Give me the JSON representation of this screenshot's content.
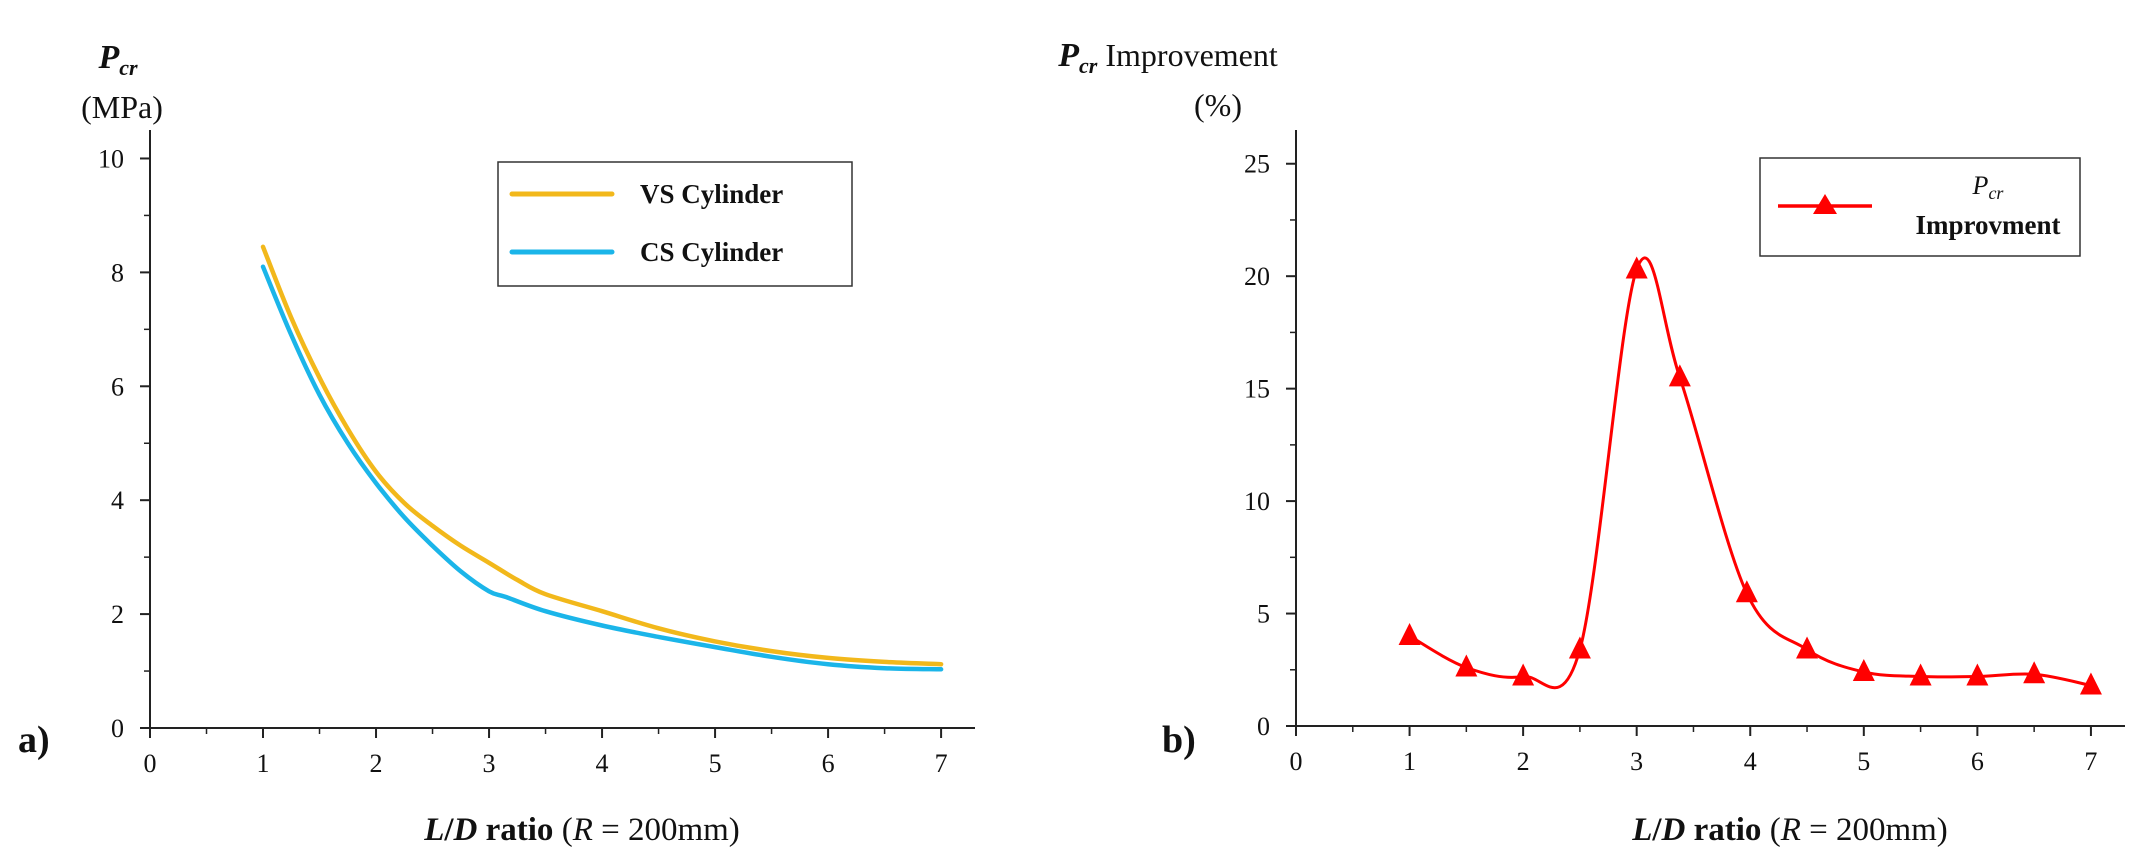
{
  "chart_data": [
    {
      "type": "line",
      "panel_label": "a)",
      "ylabel": {
        "symbol": "P",
        "subscript": "cr",
        "suffix": "",
        "unit": "(MPa)"
      },
      "xlabel": {
        "italic_L": "L",
        "slash": "/",
        "italic_D": "D",
        "bold_word": " ratio",
        "open": " (",
        "italic_R": "R",
        "rest": " = 200mm)"
      },
      "xlim": [
        0,
        7.3
      ],
      "ylim": [
        0,
        10.5
      ],
      "xticks": [
        0,
        1,
        2,
        3,
        4,
        5,
        6,
        7
      ],
      "yticks": [
        0,
        2,
        4,
        6,
        8,
        10
      ],
      "legend_position": "top-right",
      "series": [
        {
          "name": "VS Cylinder",
          "color": "#F2B81B",
          "x": [
            1.0,
            1.25,
            1.5,
            1.75,
            2.0,
            2.25,
            2.5,
            2.75,
            3.0,
            3.25,
            3.5,
            4.0,
            4.5,
            5.0,
            5.5,
            6.0,
            6.5,
            7.0
          ],
          "y": [
            8.45,
            7.2,
            6.15,
            5.25,
            4.5,
            3.95,
            3.55,
            3.2,
            2.9,
            2.6,
            2.35,
            2.05,
            1.75,
            1.52,
            1.35,
            1.23,
            1.16,
            1.12
          ]
        },
        {
          "name": "CS Cylinder",
          "color": "#1BB5E9",
          "x": [
            1.0,
            1.25,
            1.5,
            1.75,
            2.0,
            2.25,
            2.5,
            2.75,
            3.0,
            3.15,
            3.5,
            4.0,
            4.5,
            5.0,
            5.5,
            6.0,
            6.5,
            7.0
          ],
          "y": [
            8.1,
            6.9,
            5.85,
            5.0,
            4.3,
            3.7,
            3.2,
            2.75,
            2.4,
            2.3,
            2.05,
            1.8,
            1.6,
            1.42,
            1.25,
            1.12,
            1.05,
            1.03
          ]
        }
      ]
    },
    {
      "type": "line",
      "panel_label": "b)",
      "ylabel": {
        "symbol": "P",
        "subscript": "cr",
        "suffix": " Improvement",
        "unit": "(%)"
      },
      "xlabel": {
        "italic_L": "L",
        "slash": "/",
        "italic_D": "D",
        "bold_word": " ratio",
        "open": " (",
        "italic_R": "R",
        "rest": " = 200mm)"
      },
      "xlim": [
        0,
        7.3
      ],
      "ylim": [
        0,
        26.5
      ],
      "xticks": [
        0,
        1,
        2,
        3,
        4,
        5,
        6,
        7
      ],
      "yticks": [
        0,
        5,
        10,
        15,
        20,
        25
      ],
      "legend_position": "top-right",
      "series": [
        {
          "name_symbol": "P",
          "name_subscript": "cr",
          "name": "Improvment",
          "color": "#FF0000",
          "marker": "triangle",
          "x": [
            1.0,
            1.5,
            2.0,
            2.5,
            3.0,
            3.38,
            3.97,
            4.5,
            5.0,
            5.5,
            6.0,
            6.5,
            7.0
          ],
          "y": [
            4.0,
            2.6,
            2.2,
            3.4,
            20.3,
            15.5,
            5.9,
            3.4,
            2.4,
            2.2,
            2.2,
            2.3,
            1.8
          ]
        }
      ]
    }
  ]
}
